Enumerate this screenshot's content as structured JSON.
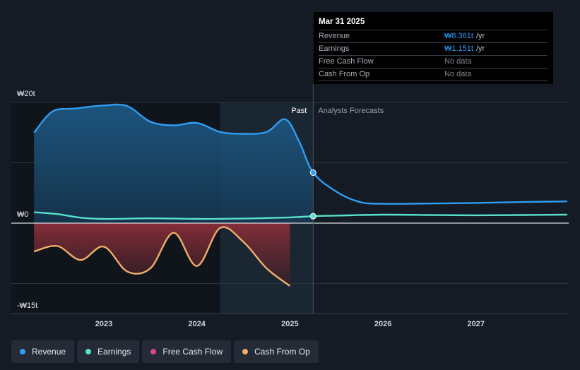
{
  "chart_data": {
    "type": "area",
    "currency": "₩",
    "y_axis": {
      "top_label": "₩20t",
      "zero_label": "₩0",
      "bottom_label": "-₩15t",
      "ylim": [
        -15,
        20
      ]
    },
    "x_axis": {
      "ticks": [
        "2023",
        "2024",
        "2025",
        "2026",
        "2027"
      ],
      "xlim": [
        2022.25,
        2027.98
      ]
    },
    "past_label": "Past",
    "forecast_label": "Analysts Forecasts",
    "divider_x": 2025.25,
    "shade_start_x": 2024.25,
    "grid": true,
    "series": [
      {
        "name": "Revenue",
        "color": "#2f9df2",
        "x": [
          2022.25,
          2022.45,
          2022.7,
          2023.0,
          2023.25,
          2023.5,
          2023.75,
          2024.0,
          2024.25,
          2024.5,
          2024.75,
          2024.95,
          2025.1,
          2025.25,
          2025.5,
          2025.75,
          2026.0,
          2026.5,
          2027.0,
          2027.5,
          2027.98
        ],
        "values": [
          15.0,
          18.5,
          19.0,
          19.5,
          19.4,
          16.8,
          16.2,
          16.6,
          15.1,
          14.8,
          15.1,
          17.2,
          13.5,
          8.361,
          5.2,
          3.5,
          3.2,
          3.25,
          3.35,
          3.5,
          3.6
        ]
      },
      {
        "name": "Earnings",
        "color": "#58e1cd",
        "x": [
          2022.25,
          2022.5,
          2022.75,
          2023.0,
          2023.5,
          2024.0,
          2024.5,
          2025.0,
          2025.25,
          2025.5,
          2026.0,
          2026.5,
          2027.0,
          2027.5,
          2027.98
        ],
        "values": [
          1.8,
          1.5,
          0.9,
          0.7,
          0.8,
          0.7,
          0.75,
          0.95,
          1.151,
          1.25,
          1.4,
          1.35,
          1.3,
          1.35,
          1.4
        ]
      },
      {
        "name": "Free Cash Flow",
        "color": "#d1498c",
        "x": [],
        "values": []
      },
      {
        "name": "Cash From Op",
        "color": "#eeae6a",
        "x": [
          2022.25,
          2022.5,
          2022.75,
          2023.0,
          2023.25,
          2023.5,
          2023.75,
          2024.0,
          2024.25,
          2024.5,
          2024.75,
          2025.0
        ],
        "values": [
          -4.7,
          -3.8,
          -6.1,
          -3.9,
          -8.0,
          -7.5,
          -1.6,
          -7.1,
          -0.8,
          -3.1,
          -7.5,
          -10.4
        ]
      }
    ]
  },
  "tooltip": {
    "date": "Mar 31 2025",
    "rows": [
      {
        "label": "Revenue",
        "value": "₩8.361t",
        "unit": "/yr"
      },
      {
        "label": "Earnings",
        "value": "₩1.151t",
        "unit": "/yr"
      },
      {
        "label": "Free Cash Flow",
        "value": "No data",
        "unit": ""
      },
      {
        "label": "Cash From Op",
        "value": "No data",
        "unit": ""
      }
    ]
  },
  "legend": [
    {
      "label": "Revenue",
      "color": "#2f9df2"
    },
    {
      "label": "Earnings",
      "color": "#58e1cd"
    },
    {
      "label": "Free Cash Flow",
      "color": "#d1498c"
    },
    {
      "label": "Cash From Op",
      "color": "#eeae6a"
    }
  ]
}
